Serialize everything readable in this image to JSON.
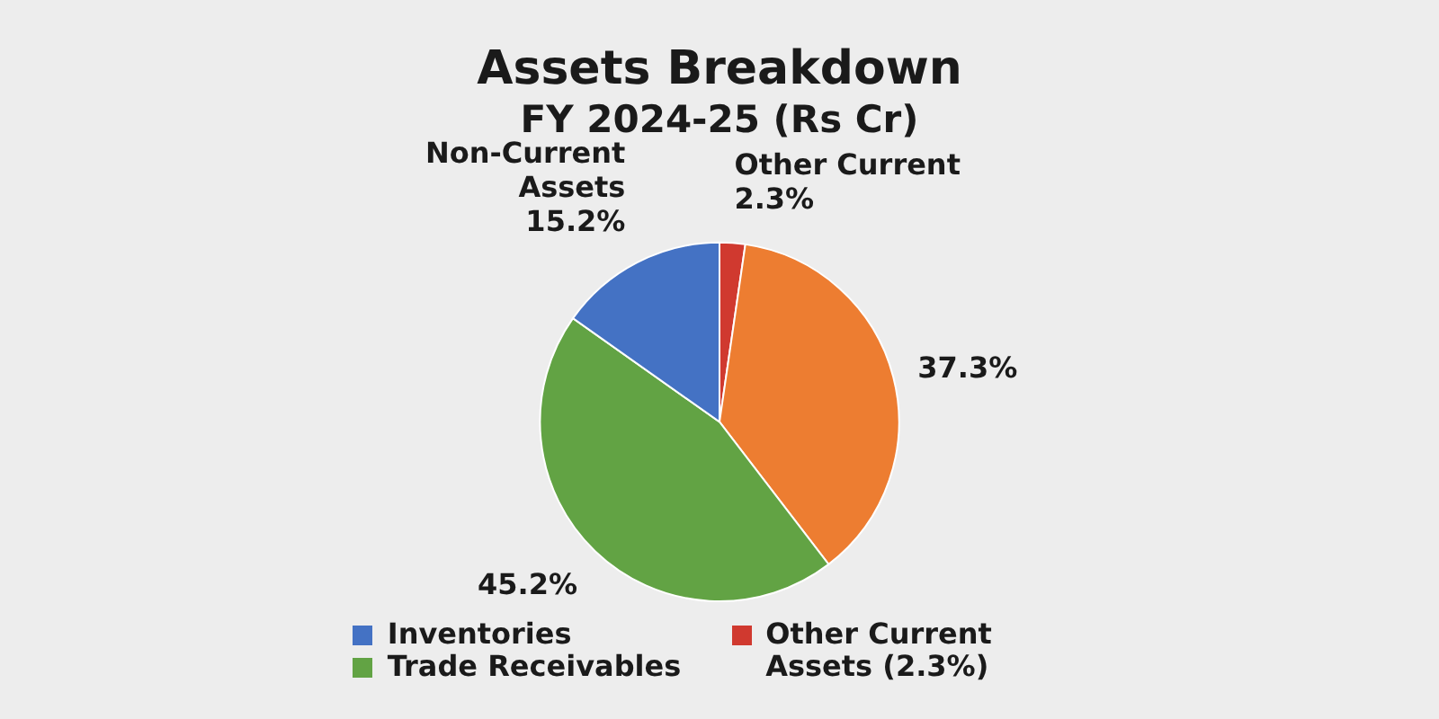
{
  "chart_data": {
    "type": "pie",
    "title": "Assets Breakdown",
    "subtitle": "FY 2024-25 (Rs Cr)",
    "categories": [
      "Other Current Assets (2.3%)",
      null,
      "Trade Receivables",
      "Inventories"
    ],
    "values": [
      2.3,
      37.3,
      45.2,
      15.2
    ],
    "colors": [
      "#d0392f",
      "#ed7d31",
      "#62a344",
      "#4472c4"
    ],
    "value_labels": [
      "Other Current 2.3%",
      "37.3%",
      "45.2%",
      "Non-Current Assets 15.2%"
    ],
    "legend": "bottom"
  }
}
